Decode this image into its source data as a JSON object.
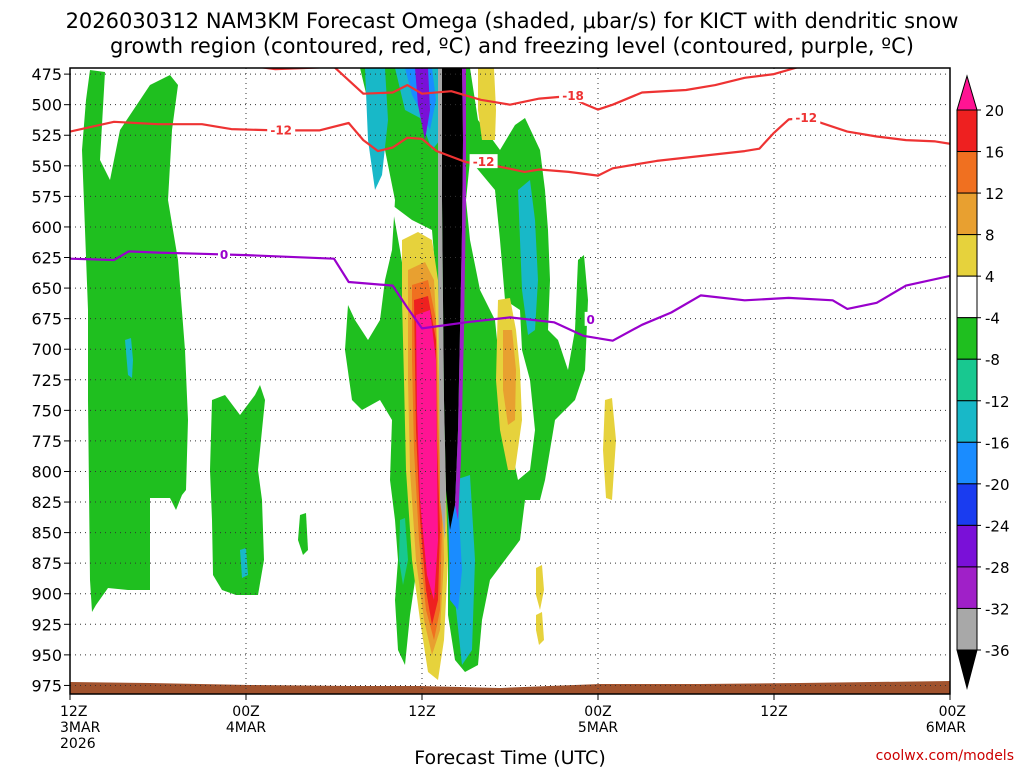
{
  "title": {
    "line1": "2026030312 NAM3KM Forecast Omega (shaded, μbar/s) for KICT with dendritic snow",
    "line2": "growth region (contoured, red, ºC) and freezing level (contoured, purple, ºC)"
  },
  "credit": "coolwx.com/models",
  "chart_data": {
    "type": "heatmap",
    "xlabel": "Forecast Time (UTC)",
    "x_ticks": [
      {
        "hour": 0,
        "lines": [
          "12Z",
          "3MAR",
          "2026"
        ]
      },
      {
        "hour": 12,
        "lines": [
          "00Z",
          "4MAR"
        ]
      },
      {
        "hour": 24,
        "lines": [
          "12Z"
        ]
      },
      {
        "hour": 36,
        "lines": [
          "00Z",
          "5MAR"
        ]
      },
      {
        "hour": 48,
        "lines": [
          "12Z"
        ]
      },
      {
        "hour": 60,
        "lines": [
          "00Z",
          "6MAR"
        ]
      }
    ],
    "xlim_hours": [
      0,
      60
    ],
    "y_ticks": [
      "475",
      "500",
      "525",
      "550",
      "575",
      "600",
      "625",
      "650",
      "675",
      "700",
      "725",
      "750",
      "775",
      "800",
      "825",
      "850",
      "875",
      "900",
      "925",
      "950",
      "975"
    ],
    "ylim_hPa": [
      470,
      982
    ],
    "grid": "dotted",
    "colorbar": {
      "labels": [
        "20",
        "16",
        "12",
        "8",
        "4",
        "-4",
        "-8",
        "-12",
        "-16",
        "-20",
        "-24",
        "-28",
        "-32",
        "-36"
      ],
      "colors": [
        "#ff1493",
        "#ee2020",
        "#f07020",
        "#e8a030",
        "#e6d23c",
        "#ffffff",
        "#1fbf1f",
        "#18c890",
        "#18b8c8",
        "#1a8cff",
        "#1a3cf0",
        "#7a10d8",
        "#a020c8",
        "#a8a8a8",
        "#000000"
      ]
    },
    "terrain_color": "#a0522d",
    "freezing_level": {
      "label": "0",
      "color": "#9900cc",
      "points": [
        [
          0,
          626
        ],
        [
          3,
          627
        ],
        [
          4,
          620
        ],
        [
          6,
          621
        ],
        [
          9,
          622
        ],
        [
          12,
          623
        ],
        [
          18,
          626
        ],
        [
          19,
          645
        ],
        [
          22,
          648
        ],
        [
          23,
          666
        ],
        [
          24,
          683
        ],
        [
          27,
          678
        ],
        [
          30,
          674
        ],
        [
          33,
          678
        ],
        [
          35,
          689
        ],
        [
          37,
          693
        ],
        [
          39,
          680
        ],
        [
          41,
          670
        ],
        [
          43,
          656
        ],
        [
          46,
          660
        ],
        [
          49,
          658
        ],
        [
          52,
          660
        ],
        [
          53,
          667
        ],
        [
          55,
          662
        ],
        [
          57,
          648
        ],
        [
          60,
          640
        ]
      ]
    },
    "dgz_minus12": {
      "label": "-12",
      "color": "#ee3333",
      "segments": [
        [
          [
            0,
            522
          ],
          [
            3,
            514
          ],
          [
            6,
            516
          ],
          [
            9,
            516
          ],
          [
            11,
            520
          ],
          [
            14,
            521
          ],
          [
            17,
            521
          ],
          [
            19,
            515
          ],
          [
            20,
            529
          ],
          [
            21,
            538
          ],
          [
            22,
            535
          ],
          [
            23,
            527
          ],
          [
            24,
            528
          ],
          [
            25,
            538
          ],
          [
            27,
            547
          ],
          [
            29,
            550
          ],
          [
            31,
            555
          ],
          [
            32,
            553
          ],
          [
            34,
            555
          ],
          [
            36,
            558
          ],
          [
            37,
            552
          ],
          [
            40,
            546
          ],
          [
            43,
            542
          ],
          [
            46,
            538
          ],
          [
            47,
            536
          ],
          [
            48,
            523
          ],
          [
            49,
            512
          ],
          [
            50,
            511
          ],
          [
            51,
            514
          ],
          [
            53,
            522
          ],
          [
            55,
            526
          ],
          [
            57,
            529
          ],
          [
            59,
            530
          ],
          [
            60,
            532
          ]
        ]
      ]
    },
    "dgz_minus18": {
      "label": "-18",
      "color": "#ee3333",
      "points": [
        [
          11,
          466
        ],
        [
          14,
          471
        ],
        [
          16,
          470
        ],
        [
          18,
          469
        ],
        [
          20,
          491
        ],
        [
          22,
          490
        ],
        [
          23,
          484
        ],
        [
          24,
          491
        ],
        [
          26,
          489
        ],
        [
          28,
          496
        ],
        [
          30,
          500
        ],
        [
          32,
          495
        ],
        [
          34,
          493
        ],
        [
          35,
          499
        ],
        [
          36,
          504
        ],
        [
          37,
          500
        ],
        [
          39,
          490
        ],
        [
          42,
          488
        ],
        [
          44,
          484
        ],
        [
          46,
          478
        ],
        [
          48,
          475
        ],
        [
          50,
          468
        ]
      ]
    }
  }
}
